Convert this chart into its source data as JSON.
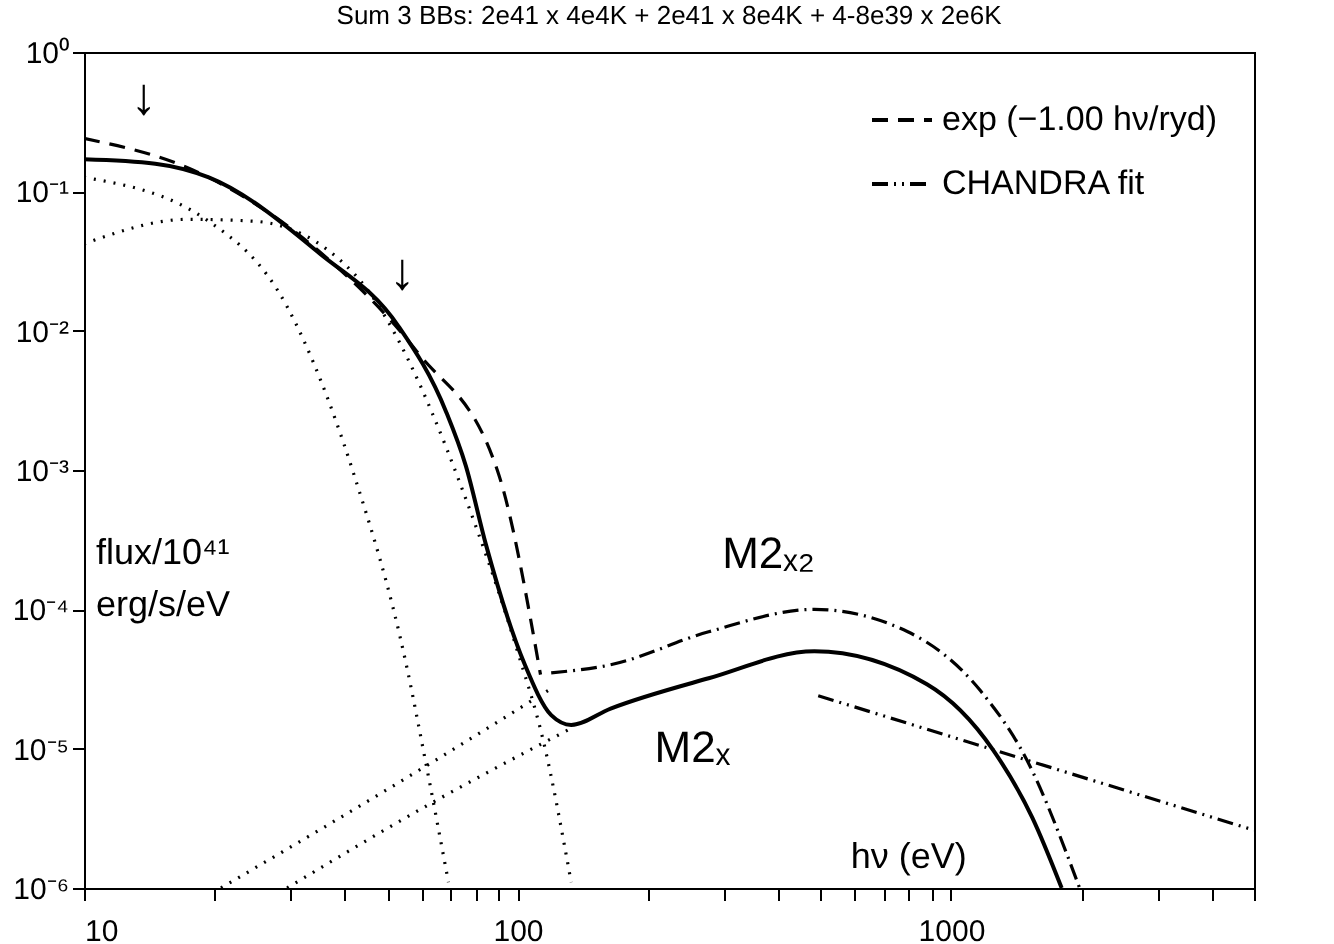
{
  "chart_data": {
    "type": "line",
    "title": "Sum 3 BBs: 2e41 x 4e4K + 2e41 x 8e4K + 4-8e39 x 2e6K",
    "xlabel": "hν (eV)",
    "ylabel": "flux/10⁴¹ erg/s/eV",
    "log": "xy",
    "grid": false,
    "legend": "top right",
    "xlim": [
      10,
      5000
    ],
    "ylim": [
      1e-06,
      1
    ],
    "xticks": [
      10,
      {
        "value": 20,
        "label": null
      },
      {
        "value": 30,
        "label": null
      },
      {
        "value": 40,
        "label": null
      },
      {
        "value": 50,
        "label": null
      },
      {
        "value": 60,
        "label": null
      },
      {
        "value": 70,
        "label": null
      },
      {
        "value": 80,
        "label": null
      },
      {
        "value": 90,
        "label": null
      },
      100,
      {
        "value": 200,
        "label": null
      },
      {
        "value": 300,
        "label": null
      },
      {
        "value": 400,
        "label": null
      },
      {
        "value": 500,
        "label": null
      },
      {
        "value": 600,
        "label": null
      },
      {
        "value": 700,
        "label": null
      },
      {
        "value": 800,
        "label": null
      },
      {
        "value": 900,
        "label": null
      },
      1000,
      {
        "value": 2000,
        "label": null
      },
      {
        "value": 3000,
        "label": null
      },
      {
        "value": 4000,
        "label": null
      },
      {
        "value": 5000,
        "label": null
      }
    ],
    "yticks": [
      {
        "value": 1e-06,
        "label": "10⁻⁶"
      },
      {
        "value": 1e-05,
        "label": "10⁻⁵"
      },
      {
        "value": 0.0001,
        "label": "10⁻⁴"
      },
      {
        "value": 0.001,
        "label": "10⁻³"
      },
      {
        "value": 0.01,
        "label": "10⁻²"
      },
      {
        "value": 0.1,
        "label": "10⁻¹"
      },
      {
        "value": 1,
        "label": "10⁰"
      }
    ],
    "series": [
      {
        "color": "#000000",
        "line_style": "solid",
        "x": [
          10,
          14.6,
          19.4,
          34.9,
          53.2,
          68.5,
          76,
          84.6,
          104,
          119.6,
          133,
          164,
          276,
          484,
          880,
          1250,
          1540,
          1800
        ],
        "values": [
          0.17,
          0.158,
          0.126,
          0.036,
          0.0107,
          0.0026,
          0.00107,
          0.00029,
          4e-05,
          1.74e-05,
          1.48e-05,
          1.94e-05,
          3.2e-05,
          5e-05,
          2.9e-05,
          9.8e-06,
          3.2e-06,
          1e-06
        ]
      },
      {
        "name": "exp (−1.00 hν/ryd)",
        "color": "#000000",
        "line_style": "dashed",
        "x": [
          10,
          18.6,
          34.9,
          59,
          90,
          113
        ],
        "values": [
          0.24,
          0.134,
          0.037,
          0.0069,
          0.00098,
          3.4e-05
        ]
      },
      {
        "color": "#000000",
        "line_style": "dashdot",
        "x": [
          119.6,
          164,
          276,
          484,
          795,
          1170,
          1490,
          1980
        ],
        "values": [
          3.5e-05,
          4e-05,
          6.9e-05,
          0.0001,
          6.9e-05,
          2.6e-05,
          8.5e-06,
          1e-06
        ]
      },
      {
        "name": "CHANDRA fit",
        "color": "#000000",
        "line_style": "dashdotdot",
        "x": [
          494,
          5000
        ],
        "values": [
          2.4e-05,
          2.6e-06
        ]
      },
      {
        "color": "#000000",
        "line_style": "dotted",
        "x": [
          10,
          19.4,
          29.4,
          41.8,
          55.4,
          61.6,
          69.3
        ],
        "values": [
          0.126,
          0.061,
          0.0149,
          0.00096,
          4e-05,
          7.6e-06,
          1.1e-06
        ]
      },
      {
        "color": "#000000",
        "line_style": "dotted",
        "x": [
          10,
          17.4,
          24.7,
          41.8,
          81,
          100,
          115,
          133
        ],
        "values": [
          0.042,
          0.063,
          0.061,
          0.026,
          0.00036,
          5e-05,
          1.1e-05,
          1.1e-06
        ]
      },
      {
        "color": "#000000",
        "line_style": "dotted",
        "x": [
          20.7,
          63.6,
          119.6
        ],
        "values": [
          1e-06,
          8e-06,
          2.7e-05
        ]
      },
      {
        "color": "#000000",
        "line_style": "dotted",
        "x": [
          29.4,
          63.6,
          133
        ],
        "values": [
          1e-06,
          4.1e-06,
          1.4e-05
        ]
      }
    ],
    "annotations": [
      "M2ₓ₂",
      "M2ₓ",
      "↓",
      "↓"
    ]
  }
}
